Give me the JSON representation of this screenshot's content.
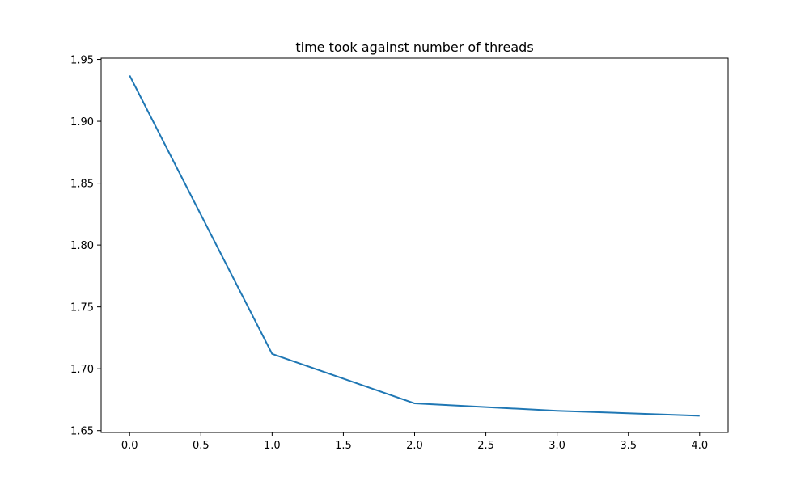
{
  "chart_data": {
    "type": "line",
    "title": "time took against number of threads",
    "xlabel": "",
    "ylabel": "",
    "x": [
      0,
      1,
      2,
      3,
      4
    ],
    "series": [
      {
        "name": "time",
        "values": [
          1.937,
          1.712,
          1.672,
          1.666,
          1.662
        ],
        "color": "#1f77b4"
      }
    ],
    "xlim": [
      -0.2,
      4.2
    ],
    "ylim": [
      1.6485,
      1.951
    ],
    "xticks": [
      0.0,
      0.5,
      1.0,
      1.5,
      2.0,
      2.5,
      3.0,
      3.5,
      4.0
    ],
    "xtick_labels": [
      "0.0",
      "0.5",
      "1.0",
      "1.5",
      "2.0",
      "2.5",
      "3.0",
      "3.5",
      "4.0"
    ],
    "yticks": [
      1.65,
      1.7,
      1.75,
      1.8,
      1.85,
      1.9,
      1.95
    ],
    "ytick_labels": [
      "1.65",
      "1.70",
      "1.75",
      "1.80",
      "1.85",
      "1.90",
      "1.95"
    ],
    "grid": false,
    "legend": "none"
  }
}
